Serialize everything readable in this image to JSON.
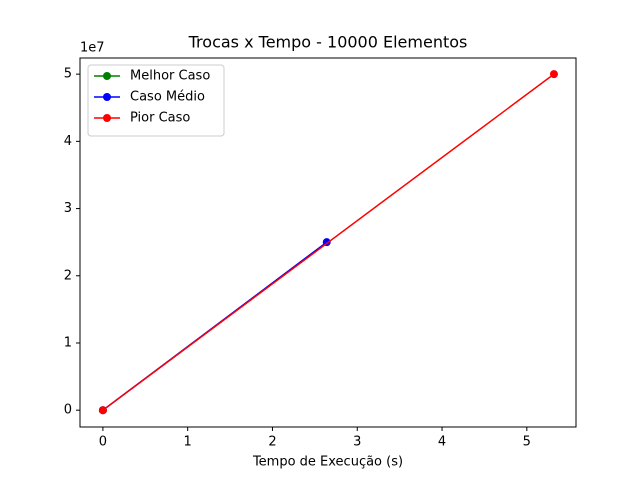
{
  "chart_data": {
    "type": "line",
    "title": "Trocas x Tempo - 10000 Elementos",
    "x_label": "Tempo de Execução (s)",
    "y_offset_label": "1e7",
    "series": [
      {
        "name": "Melhor Caso",
        "color": "#008000",
        "x": [
          0
        ],
        "values": [
          0
        ]
      },
      {
        "name": "Caso Médio",
        "color": "#0000ff",
        "x": [
          0,
          2.64
        ],
        "values": [
          0,
          25000000
        ]
      },
      {
        "name": "Pior Caso",
        "color": "#ff0000",
        "x": [
          0,
          5.32
        ],
        "values": [
          0,
          50000000
        ]
      }
    ],
    "xlim": [
      -0.27,
      5.58
    ],
    "xticks": [
      0,
      1,
      2,
      3,
      4,
      5
    ],
    "ylim": [
      -2500000,
      52400000
    ],
    "yticks": [
      {
        "value": 0,
        "label": "0"
      },
      {
        "value": 10000000,
        "label": "1"
      },
      {
        "value": 20000000,
        "label": "2"
      },
      {
        "value": 30000000,
        "label": "3"
      },
      {
        "value": 40000000,
        "label": "4"
      },
      {
        "value": 50000000,
        "label": "5"
      }
    ],
    "legend": "upper left",
    "grid": false
  }
}
